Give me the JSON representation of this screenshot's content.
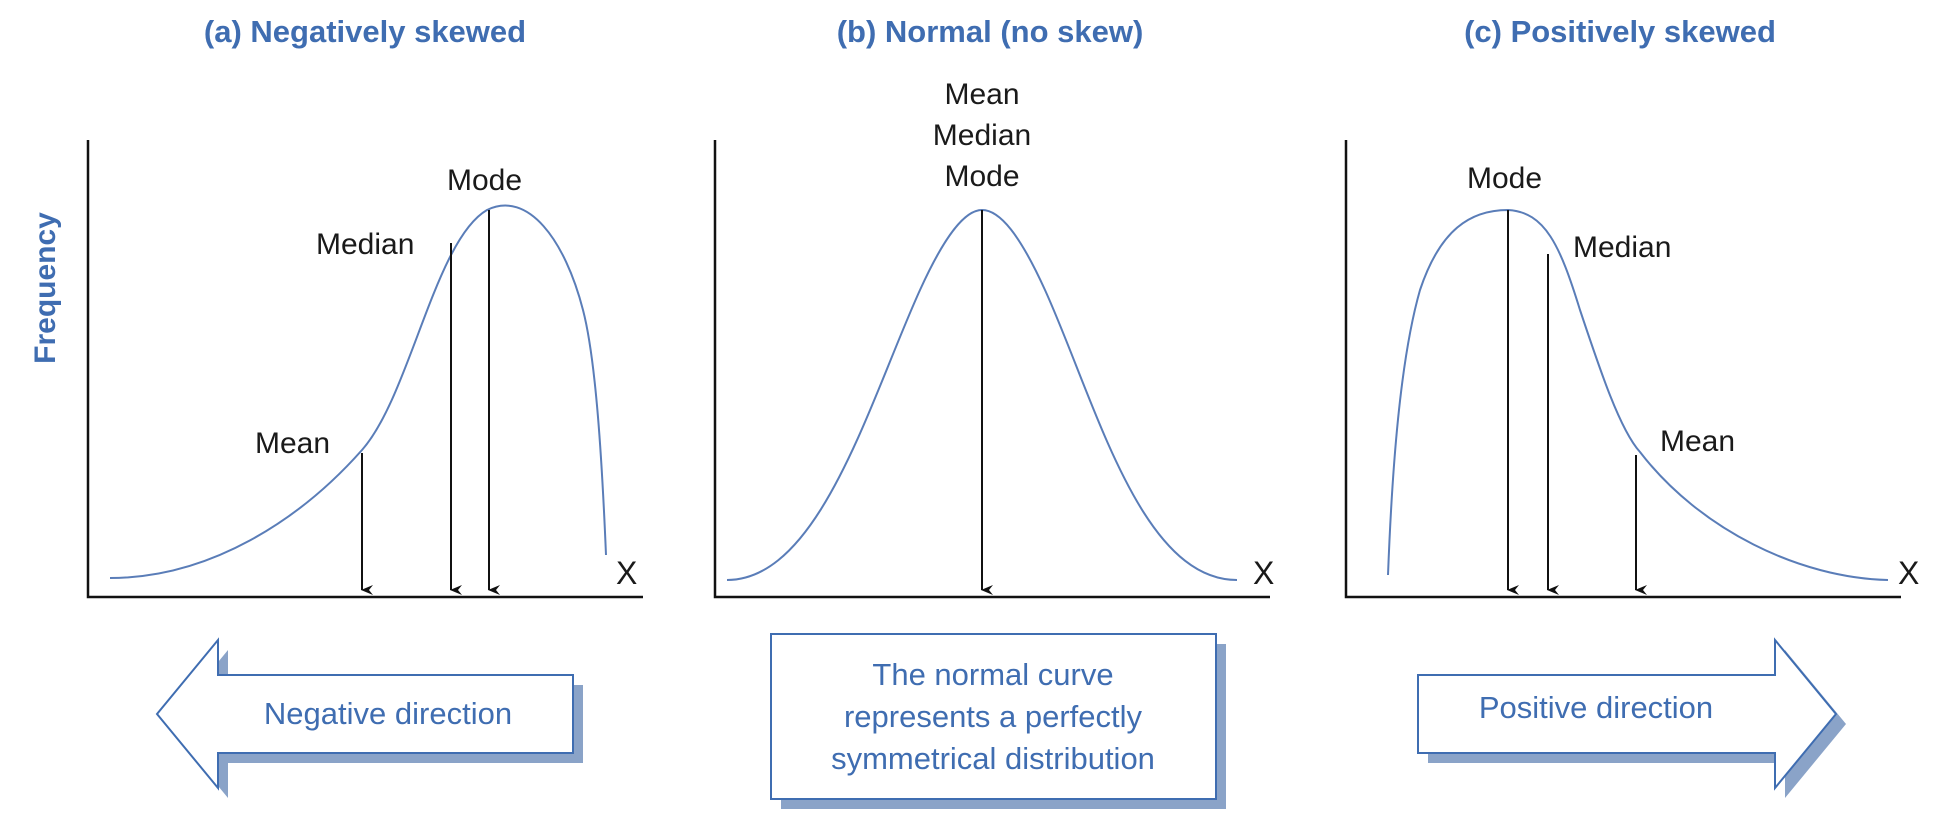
{
  "colors": {
    "accent": "#3f6db1",
    "curve": "#5a7db8",
    "shadow": "#8aa3c8",
    "ink": "#111111"
  },
  "y_axis_label": "Frequency",
  "panels": [
    {
      "id": "a",
      "title": "(a) Negatively skewed",
      "x_axis_label": "X",
      "markers": {
        "mean": "Mean",
        "median": "Median",
        "mode": "Mode"
      },
      "direction": "Negative direction"
    },
    {
      "id": "b",
      "title": "(b) Normal (no skew)",
      "x_axis_label": "X",
      "markers": {
        "mean": "Mean",
        "median": "Median",
        "mode": "Mode"
      },
      "note": [
        "The normal curve",
        "represents a perfectly",
        "symmetrical distribution"
      ]
    },
    {
      "id": "c",
      "title": "(c) Positively skewed",
      "x_axis_label": "X",
      "markers": {
        "mode": "Mode",
        "median": "Median",
        "mean": "Mean"
      },
      "direction": "Positive direction"
    }
  ]
}
